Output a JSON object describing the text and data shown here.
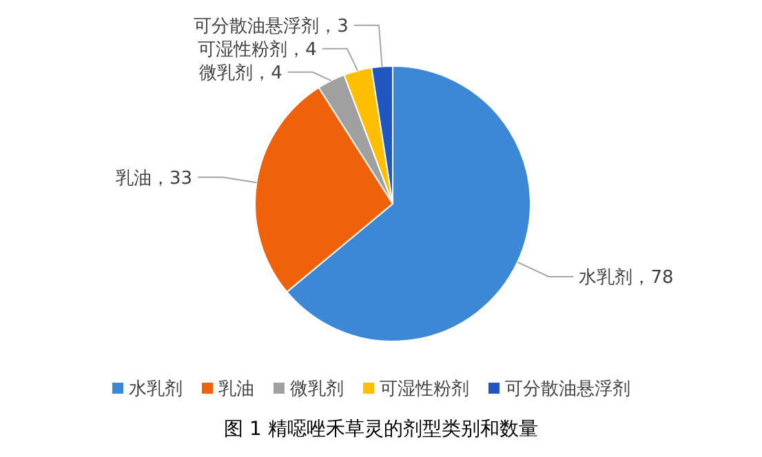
{
  "chart_data": {
    "type": "pie",
    "title": "图 1 精噁唑禾草灵的剂型类别和数量",
    "categories": [
      "水乳剂",
      "乳油",
      "微乳剂",
      "可湿性粉剂",
      "可分散油悬浮剂"
    ],
    "values": [
      78,
      33,
      4,
      4,
      3
    ],
    "value_labels": [
      "水乳剂，78",
      "乳油，33",
      "微乳剂，4",
      "可湿性粉剂，4",
      "可分散油悬浮剂，3"
    ],
    "colors": [
      "#3c87d6",
      "#f0620a",
      "#a0a0a0",
      "#ffbf00",
      "#2155c0"
    ],
    "legend": "bottom"
  }
}
